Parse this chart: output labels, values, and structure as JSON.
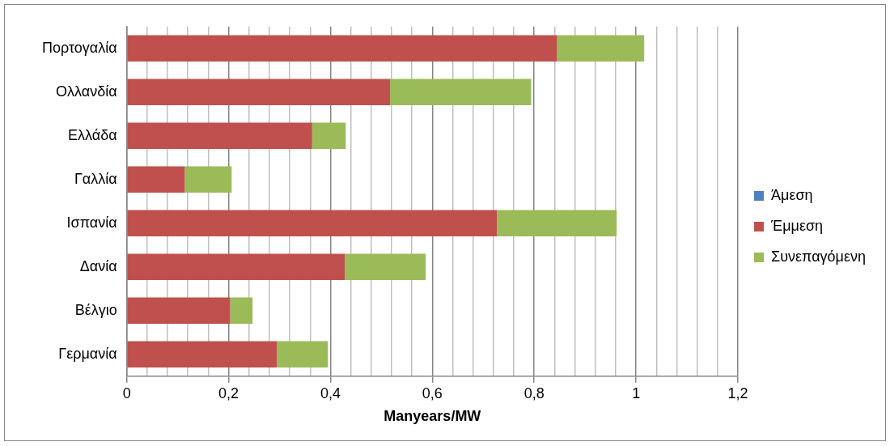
{
  "chart_data": {
    "type": "bar",
    "orientation": "horizontal",
    "stacked": true,
    "xlabel": "Manyears/MW",
    "categories": [
      "Πορτογαλία",
      "Ολλανδία",
      "Ελλάδα",
      "Γαλλία",
      "Ισπανία",
      "Δανία",
      "Βέλγιο",
      "Γερμανία"
    ],
    "series": [
      {
        "name": "Άμεση",
        "color": "#4f81bd",
        "values": [
          0,
          0,
          0,
          0,
          0,
          0,
          0,
          0
        ]
      },
      {
        "name": "Έμμεση",
        "color": "#c0504d",
        "values": [
          0.845,
          0.517,
          0.364,
          0.114,
          0.727,
          0.428,
          0.203,
          0.295
        ]
      },
      {
        "name": "Συνεπαγόμενη",
        "color": "#9bbb59",
        "values": [
          0.171,
          0.277,
          0.066,
          0.092,
          0.235,
          0.159,
          0.044,
          0.1
        ]
      }
    ],
    "xlim": [
      0,
      1.2
    ],
    "xticks": [
      {
        "value": 0,
        "label": "0"
      },
      {
        "value": 0.04,
        "label": null
      },
      {
        "value": 0.08,
        "label": null
      },
      {
        "value": 0.12,
        "label": null
      },
      {
        "value": 0.16,
        "label": null
      },
      {
        "value": 0.2,
        "label": "0,2"
      },
      {
        "value": 0.24,
        "label": null
      },
      {
        "value": 0.28,
        "label": null
      },
      {
        "value": 0.32,
        "label": null
      },
      {
        "value": 0.36,
        "label": null
      },
      {
        "value": 0.4,
        "label": "0,4"
      },
      {
        "value": 0.44,
        "label": null
      },
      {
        "value": 0.48,
        "label": null
      },
      {
        "value": 0.52,
        "label": null
      },
      {
        "value": 0.56,
        "label": null
      },
      {
        "value": 0.6,
        "label": "0,6"
      },
      {
        "value": 0.64,
        "label": null
      },
      {
        "value": 0.68,
        "label": null
      },
      {
        "value": 0.72,
        "label": null
      },
      {
        "value": 0.76,
        "label": null
      },
      {
        "value": 0.8,
        "label": "0,8"
      },
      {
        "value": 0.84,
        "label": null
      },
      {
        "value": 0.88,
        "label": null
      },
      {
        "value": 0.92,
        "label": null
      },
      {
        "value": 0.96,
        "label": null
      },
      {
        "value": 1,
        "label": "1"
      },
      {
        "value": 1.04,
        "label": null
      },
      {
        "value": 1.08,
        "label": null
      },
      {
        "value": 1.12,
        "label": null
      },
      {
        "value": 1.16,
        "label": null
      },
      {
        "value": 1.2,
        "label": "1,2"
      }
    ],
    "grid": "x",
    "legend": "right"
  }
}
